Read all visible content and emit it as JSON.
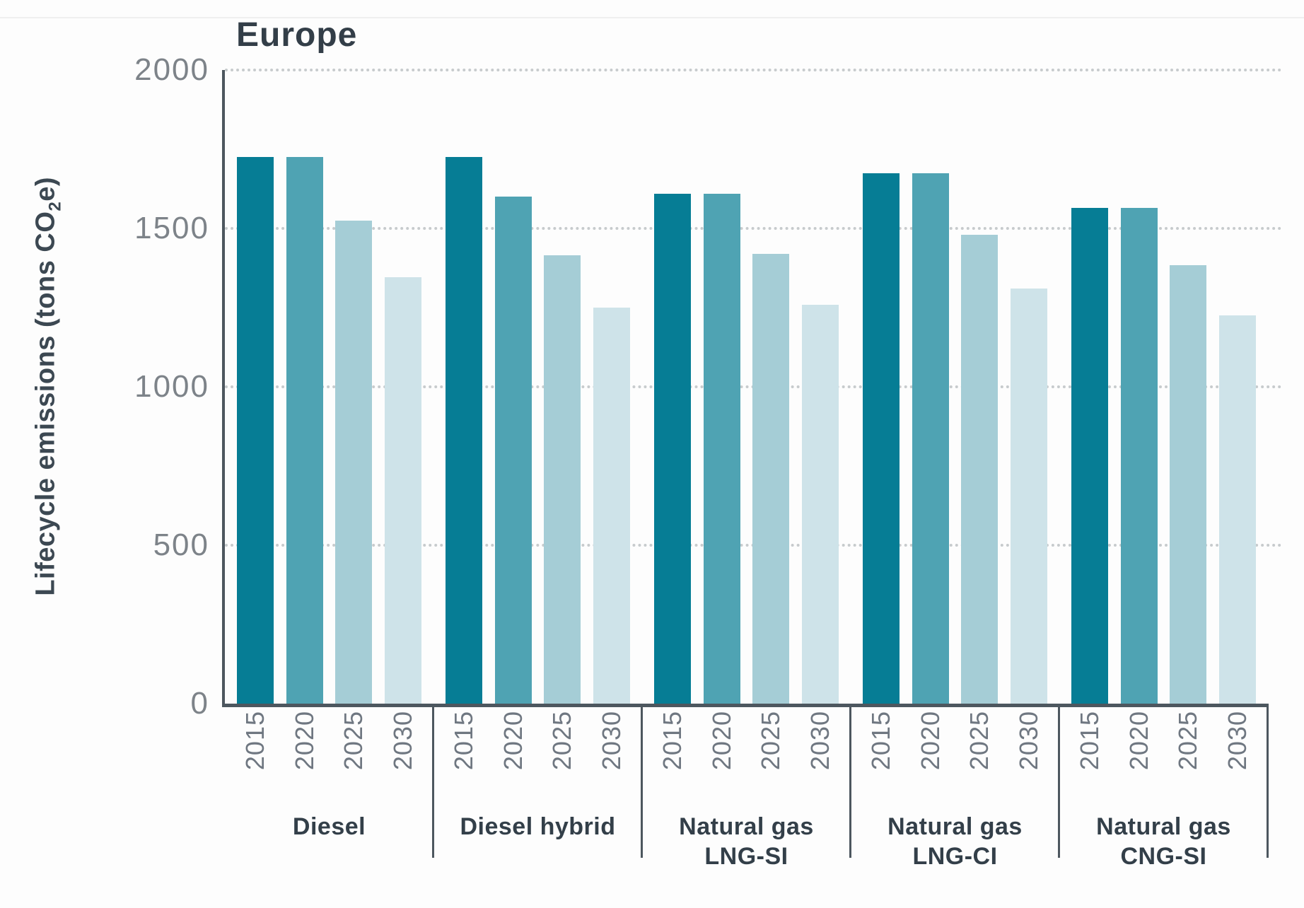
{
  "chart_data": {
    "type": "bar",
    "title": "Europe",
    "ylabel_pre": "Lifecycle emissions (tons CO",
    "ylabel_sub": "2",
    "ylabel_post": "e)",
    "ylabel_full": "Lifecycle emissions (tons CO2e)",
    "ylim": [
      0,
      2000
    ],
    "yticks": [
      0,
      500,
      1000,
      1500,
      2000
    ],
    "grid": "horizontal dotted lines at 500, 1000, 1500, 2000; none at 0 (solid axis baseline)",
    "legend_position": "none (year encoded by bar shade, labeled under each bar)",
    "categories_years": [
      "2015",
      "2020",
      "2025",
      "2030"
    ],
    "year_colors": [
      "#067d95",
      "#4fa3b3",
      "#a5cdd6",
      "#cee3e9"
    ],
    "groups": [
      {
        "label_lines": [
          "Diesel"
        ],
        "values": [
          1725,
          1725,
          1525,
          1345
        ]
      },
      {
        "label_lines": [
          "Diesel hybrid"
        ],
        "values": [
          1725,
          1600,
          1415,
          1250
        ]
      },
      {
        "label_lines": [
          "Natural gas",
          "LNG-SI"
        ],
        "values": [
          1610,
          1610,
          1420,
          1260
        ]
      },
      {
        "label_lines": [
          "Natural gas",
          "LNG-CI"
        ],
        "values": [
          1675,
          1675,
          1480,
          1310
        ]
      },
      {
        "label_lines": [
          "Natural gas",
          "CNG-SI"
        ],
        "values": [
          1565,
          1565,
          1385,
          1225
        ]
      }
    ],
    "colors": {
      "axis": "#4d575f",
      "grid_dot": "#c7cbcd",
      "title_text": "#333e48",
      "tick_text": "#7d8389",
      "year_text": "#6f7781",
      "group_text": "#333f49",
      "ylabel_text": "#3c4852",
      "background": "#fdfdfd"
    }
  }
}
